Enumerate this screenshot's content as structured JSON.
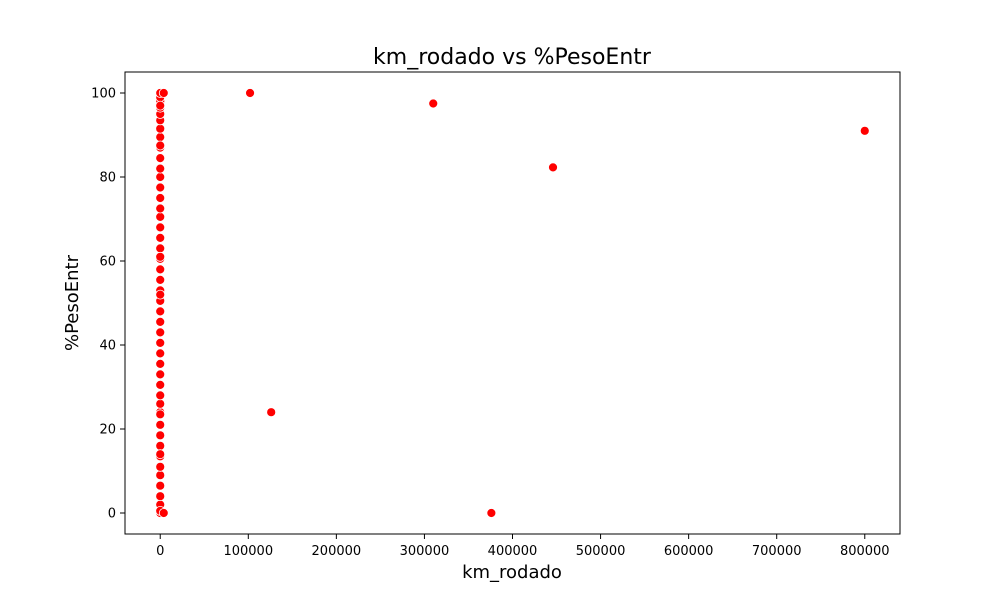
{
  "chart_data": {
    "type": "scatter",
    "title": "km_rodado vs %PesoEntr",
    "xlabel": "km_rodado",
    "ylabel": "%PesoEntr",
    "xlim": [
      -40000,
      840000
    ],
    "ylim": [
      -5,
      105
    ],
    "xticks": [
      0,
      100000,
      200000,
      300000,
      400000,
      500000,
      600000,
      700000,
      800000
    ],
    "xtick_labels": [
      "0",
      "100000",
      "200000",
      "300000",
      "400000",
      "500000",
      "600000",
      "700000",
      "800000"
    ],
    "yticks": [
      0,
      20,
      40,
      60,
      80,
      100
    ],
    "ytick_labels": [
      "0",
      "20",
      "40",
      "60",
      "80",
      "100"
    ],
    "grid": false,
    "color": "#ff0000",
    "series": [
      {
        "x": [
          0,
          0,
          0,
          0,
          0,
          0,
          0,
          0,
          0,
          0,
          0,
          0,
          0,
          0,
          0,
          0,
          0,
          0,
          0,
          0,
          0,
          0,
          0,
          0,
          0,
          0,
          0,
          0,
          0,
          0,
          0,
          0,
          0,
          0,
          0,
          0,
          0,
          0,
          0,
          0,
          0,
          0,
          0,
          0,
          0,
          0,
          0,
          0,
          0,
          0,
          0,
          0,
          4000,
          4000,
          102000,
          126000,
          310000,
          376000,
          446000,
          800000
        ],
        "y": [
          0,
          2,
          4,
          6.5,
          9,
          11,
          13.5,
          16,
          18.5,
          21,
          24,
          26,
          28,
          30.5,
          33,
          35.5,
          38,
          40.5,
          43,
          45.5,
          48,
          50.5,
          53,
          55.5,
          58,
          60.5,
          63,
          65.5,
          68,
          70.5,
          72.5,
          75,
          77.5,
          80,
          82,
          84.5,
          87,
          89.5,
          91.5,
          93.5,
          95,
          96.5,
          98,
          99,
          100,
          23.5,
          61,
          87.5,
          0.5,
          52,
          97,
          14,
          100,
          0,
          100,
          24,
          97.5,
          0,
          82.3,
          91
        ]
      }
    ]
  }
}
